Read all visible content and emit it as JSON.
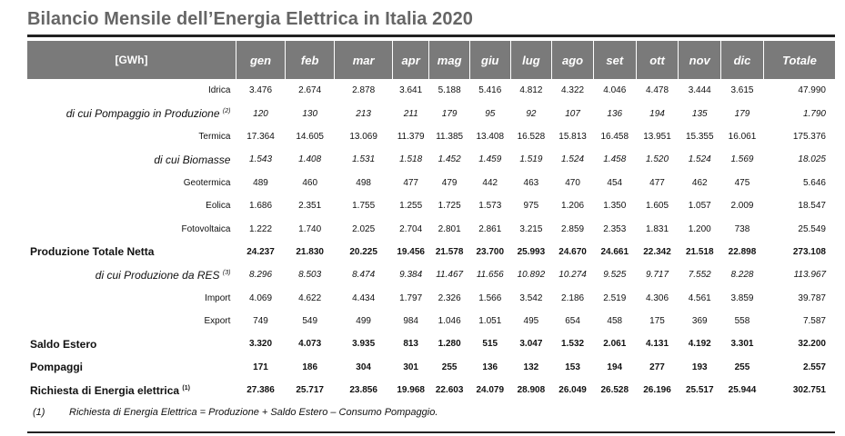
{
  "title": "Bilancio Mensile dell’Energia Elettrica in Italia 2020",
  "header": [
    "[GWh]",
    "gen",
    "feb",
    "mar",
    "apr",
    "mag",
    "giu",
    "lug",
    "ago",
    "set",
    "ott",
    "nov",
    "dic",
    "Totale"
  ],
  "rows": [
    {
      "label": "Idrica",
      "sup": "",
      "style": "normal",
      "values": [
        "3.476",
        "2.674",
        "2.878",
        "3.641",
        "5.188",
        "5.416",
        "4.812",
        "4.322",
        "4.046",
        "4.478",
        "3.444",
        "3.615",
        "47.990"
      ]
    },
    {
      "label": "di cui Pompaggio in Produzione",
      "sup": "(2)",
      "style": "italic",
      "values": [
        "120",
        "130",
        "213",
        "211",
        "179",
        "95",
        "92",
        "107",
        "136",
        "194",
        "135",
        "179",
        "1.790"
      ]
    },
    {
      "label": "Termica",
      "sup": "",
      "style": "normal",
      "values": [
        "17.364",
        "14.605",
        "13.069",
        "11.379",
        "11.385",
        "13.408",
        "16.528",
        "15.813",
        "16.458",
        "13.951",
        "15.355",
        "16.061",
        "175.376"
      ]
    },
    {
      "label": "di cui Biomasse",
      "sup": "",
      "style": "italic",
      "values": [
        "1.543",
        "1.408",
        "1.531",
        "1.518",
        "1.452",
        "1.459",
        "1.519",
        "1.524",
        "1.458",
        "1.520",
        "1.524",
        "1.569",
        "18.025"
      ]
    },
    {
      "label": "Geotermica",
      "sup": "",
      "style": "normal",
      "values": [
        "489",
        "460",
        "498",
        "477",
        "479",
        "442",
        "463",
        "470",
        "454",
        "477",
        "462",
        "475",
        "5.646"
      ]
    },
    {
      "label": "Eolica",
      "sup": "",
      "style": "normal",
      "values": [
        "1.686",
        "2.351",
        "1.755",
        "1.255",
        "1.725",
        "1.573",
        "975",
        "1.206",
        "1.350",
        "1.605",
        "1.057",
        "2.009",
        "18.547"
      ]
    },
    {
      "label": "Fotovoltaica",
      "sup": "",
      "style": "normal",
      "values": [
        "1.222",
        "1.740",
        "2.025",
        "2.704",
        "2.801",
        "2.861",
        "3.215",
        "2.859",
        "2.353",
        "1.831",
        "1.200",
        "738",
        "25.549"
      ]
    },
    {
      "label": "Produzione Totale Netta",
      "sup": "",
      "style": "bold",
      "values": [
        "24.237",
        "21.830",
        "20.225",
        "19.456",
        "21.578",
        "23.700",
        "25.993",
        "24.670",
        "24.661",
        "22.342",
        "21.518",
        "22.898",
        "273.108"
      ]
    },
    {
      "label": "di cui Produzione da RES",
      "sup": "(3)",
      "style": "italic",
      "values": [
        "8.296",
        "8.503",
        "8.474",
        "9.384",
        "11.467",
        "11.656",
        "10.892",
        "10.274",
        "9.525",
        "9.717",
        "7.552",
        "8.228",
        "113.967"
      ]
    },
    {
      "label": "Import",
      "sup": "",
      "style": "normal",
      "values": [
        "4.069",
        "4.622",
        "4.434",
        "1.797",
        "2.326",
        "1.566",
        "3.542",
        "2.186",
        "2.519",
        "4.306",
        "4.561",
        "3.859",
        "39.787"
      ]
    },
    {
      "label": "Export",
      "sup": "",
      "style": "normal",
      "values": [
        "749",
        "549",
        "499",
        "984",
        "1.046",
        "1.051",
        "495",
        "654",
        "458",
        "175",
        "369",
        "558",
        "7.587"
      ]
    },
    {
      "label": "Saldo Estero",
      "sup": "",
      "style": "bold",
      "values": [
        "3.320",
        "4.073",
        "3.935",
        "813",
        "1.280",
        "515",
        "3.047",
        "1.532",
        "2.061",
        "4.131",
        "4.192",
        "3.301",
        "32.200"
      ]
    },
    {
      "label": "Pompaggi",
      "sup": "",
      "style": "bold",
      "values": [
        "171",
        "186",
        "304",
        "301",
        "255",
        "136",
        "132",
        "153",
        "194",
        "277",
        "193",
        "255",
        "2.557"
      ]
    },
    {
      "label": "Richiesta di Energia elettrica",
      "sup": "(1)",
      "style": "bold",
      "values": [
        "27.386",
        "25.717",
        "23.856",
        "19.968",
        "22.603",
        "24.079",
        "28.908",
        "26.049",
        "26.528",
        "26.196",
        "25.517",
        "25.944",
        "302.751"
      ]
    }
  ],
  "footnote": {
    "number": "(1)",
    "text": "Richiesta di Energia Elettrica = Produzione + Saldo Estero – Consumo Pompaggio."
  }
}
